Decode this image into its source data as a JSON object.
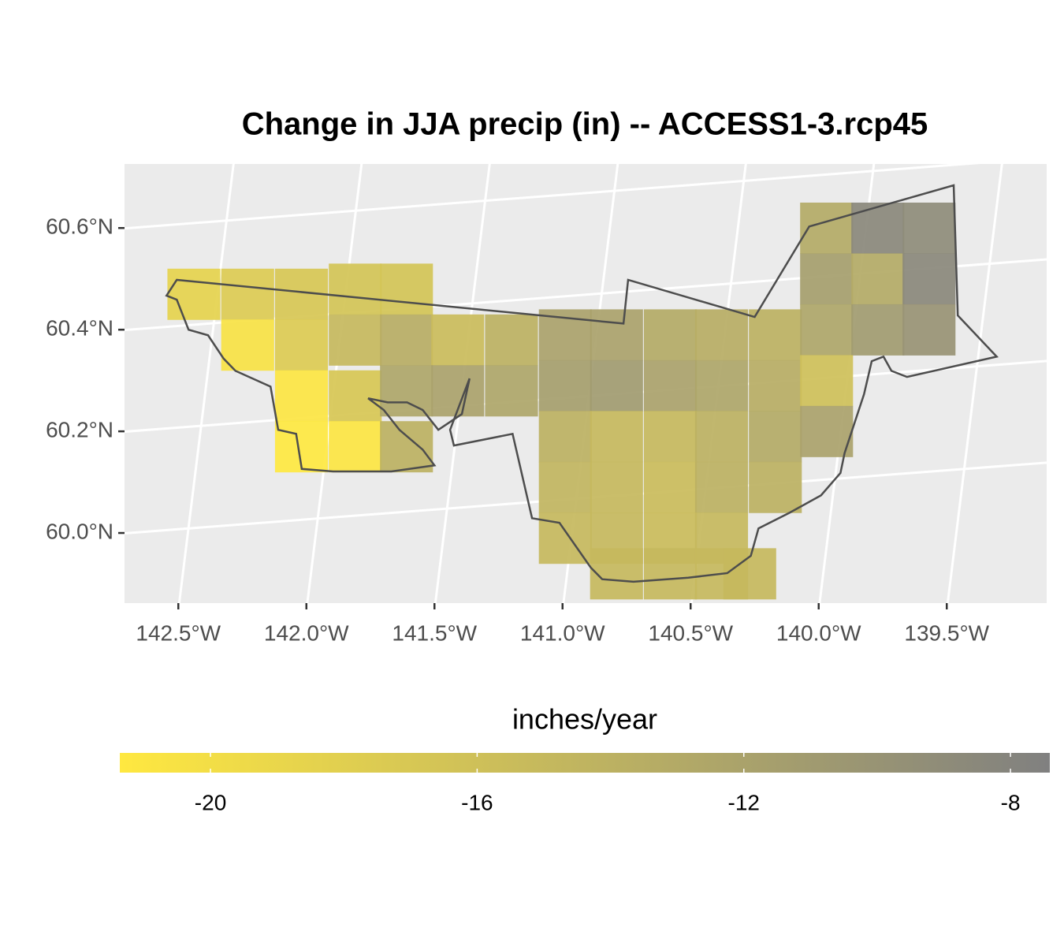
{
  "chart_data": {
    "type": "raster-map",
    "title": "Change in JJA precip (in) -- ACCESS1-3.rcp45",
    "xlim": [
      -142.71,
      -139.11
    ],
    "ylim": [
      59.862,
      60.726
    ],
    "xticks": [
      {
        "value": -142.5,
        "label": "142.5°W"
      },
      {
        "value": -142.0,
        "label": "142.0°W"
      },
      {
        "value": -141.5,
        "label": "141.5°W"
      },
      {
        "value": -141.0,
        "label": "141.0°W"
      },
      {
        "value": -140.5,
        "label": "140.5°W"
      },
      {
        "value": -140.0,
        "label": "140.0°W"
      },
      {
        "value": -139.5,
        "label": "139.5°W"
      }
    ],
    "yticks": [
      {
        "value": 60.0,
        "label": "60.0°N"
      },
      {
        "value": 60.2,
        "label": "60.2°N"
      },
      {
        "value": 60.4,
        "label": "60.4°N"
      },
      {
        "value": 60.6,
        "label": "60.6°N"
      }
    ],
    "grid": true,
    "cell_size": [
      0.205,
      0.1
    ],
    "cells": [
      {
        "lon": -139.97,
        "lat": 60.6,
        "value": -13
      },
      {
        "lon": -139.77,
        "lat": 60.6,
        "value": -8.5
      },
      {
        "lon": -139.57,
        "lat": 60.6,
        "value": -9
      },
      {
        "lon": -142.44,
        "lat": 60.47,
        "value": -18.5
      },
      {
        "lon": -142.23,
        "lat": 60.47,
        "value": -17.5
      },
      {
        "lon": -142.02,
        "lat": 60.47,
        "value": -17
      },
      {
        "lon": -141.81,
        "lat": 60.48,
        "value": -16.5
      },
      {
        "lon": -141.61,
        "lat": 60.48,
        "value": -16.5
      },
      {
        "lon": -139.97,
        "lat": 60.5,
        "value": -11.5
      },
      {
        "lon": -139.77,
        "lat": 60.5,
        "value": -13
      },
      {
        "lon": -139.57,
        "lat": 60.5,
        "value": -8.5
      },
      {
        "lon": -142.23,
        "lat": 60.37,
        "value": -20.5
      },
      {
        "lon": -142.02,
        "lat": 60.37,
        "value": -17.5
      },
      {
        "lon": -141.81,
        "lat": 60.38,
        "value": -15
      },
      {
        "lon": -141.61,
        "lat": 60.38,
        "value": -13.5
      },
      {
        "lon": -141.41,
        "lat": 60.38,
        "value": -15.5
      },
      {
        "lon": -141.2,
        "lat": 60.38,
        "value": -14
      },
      {
        "lon": -140.99,
        "lat": 60.39,
        "value": -12
      },
      {
        "lon": -140.79,
        "lat": 60.39,
        "value": -12
      },
      {
        "lon": -140.58,
        "lat": 60.39,
        "value": -13
      },
      {
        "lon": -140.38,
        "lat": 60.39,
        "value": -13.5
      },
      {
        "lon": -140.17,
        "lat": 60.39,
        "value": -14
      },
      {
        "lon": -139.97,
        "lat": 60.4,
        "value": -12.5
      },
      {
        "lon": -139.77,
        "lat": 60.4,
        "value": -11
      },
      {
        "lon": -139.57,
        "lat": 60.4,
        "value": -10
      },
      {
        "lon": -142.02,
        "lat": 60.27,
        "value": -21
      },
      {
        "lon": -141.81,
        "lat": 60.27,
        "value": -17
      },
      {
        "lon": -141.61,
        "lat": 60.28,
        "value": -12.5
      },
      {
        "lon": -141.41,
        "lat": 60.28,
        "value": -12
      },
      {
        "lon": -141.2,
        "lat": 60.28,
        "value": -12.5
      },
      {
        "lon": -140.99,
        "lat": 60.29,
        "value": -11.5
      },
      {
        "lon": -140.79,
        "lat": 60.29,
        "value": -11
      },
      {
        "lon": -140.58,
        "lat": 60.29,
        "value": -12
      },
      {
        "lon": -140.38,
        "lat": 60.29,
        "value": -12.5
      },
      {
        "lon": -140.17,
        "lat": 60.29,
        "value": -13.5
      },
      {
        "lon": -139.97,
        "lat": 60.3,
        "value": -16
      },
      {
        "lon": -142.02,
        "lat": 60.17,
        "value": -21.3
      },
      {
        "lon": -141.81,
        "lat": 60.17,
        "value": -21
      },
      {
        "lon": -141.61,
        "lat": 60.17,
        "value": -14
      },
      {
        "lon": -140.99,
        "lat": 60.19,
        "value": -14
      },
      {
        "lon": -140.79,
        "lat": 60.19,
        "value": -15
      },
      {
        "lon": -140.58,
        "lat": 60.19,
        "value": -15
      },
      {
        "lon": -140.38,
        "lat": 60.19,
        "value": -14
      },
      {
        "lon": -140.17,
        "lat": 60.19,
        "value": -13
      },
      {
        "lon": -139.97,
        "lat": 60.2,
        "value": -12
      },
      {
        "lon": -140.99,
        "lat": 60.09,
        "value": -14.5
      },
      {
        "lon": -140.79,
        "lat": 60.09,
        "value": -15
      },
      {
        "lon": -140.58,
        "lat": 60.09,
        "value": -15.5
      },
      {
        "lon": -140.38,
        "lat": 60.09,
        "value": -14
      },
      {
        "lon": -140.17,
        "lat": 60.09,
        "value": -14
      },
      {
        "lon": -140.99,
        "lat": 59.99,
        "value": -15
      },
      {
        "lon": -140.79,
        "lat": 59.99,
        "value": -15
      },
      {
        "lon": -140.58,
        "lat": 59.99,
        "value": -15.5
      },
      {
        "lon": -140.38,
        "lat": 59.99,
        "value": -15
      },
      {
        "lon": -140.79,
        "lat": 59.92,
        "value": -15
      },
      {
        "lon": -140.58,
        "lat": 59.92,
        "value": -15
      },
      {
        "lon": -140.38,
        "lat": 59.92,
        "value": -15
      },
      {
        "lon": -140.27,
        "lat": 59.92,
        "value": -15
      }
    ],
    "boundary": [
      [
        -142.546,
        60.467
      ],
      [
        -142.506,
        60.498
      ],
      [
        -140.762,
        60.412
      ],
      [
        -140.744,
        60.498
      ],
      [
        -140.25,
        60.425
      ],
      [
        -140.037,
        60.603
      ],
      [
        -139.473,
        60.684
      ],
      [
        -139.457,
        60.428
      ],
      [
        -139.305,
        60.347
      ],
      [
        -139.655,
        60.307
      ],
      [
        -139.716,
        60.319
      ],
      [
        -139.747,
        60.347
      ],
      [
        -139.793,
        60.338
      ],
      [
        -139.823,
        60.273
      ],
      [
        -139.899,
        60.157
      ],
      [
        -139.915,
        60.118
      ],
      [
        -139.991,
        60.074
      ],
      [
        -140.113,
        60.04
      ],
      [
        -140.235,
        60.009
      ],
      [
        -140.265,
        59.955
      ],
      [
        -140.357,
        59.921
      ],
      [
        -140.509,
        59.912
      ],
      [
        -140.723,
        59.904
      ],
      [
        -140.845,
        59.909
      ],
      [
        -140.89,
        59.932
      ],
      [
        -141.012,
        60.02
      ],
      [
        -141.119,
        60.029
      ],
      [
        -141.195,
        60.195
      ],
      [
        -141.424,
        60.172
      ],
      [
        -141.439,
        60.203
      ],
      [
        -141.363,
        60.304
      ],
      [
        -141.393,
        60.234
      ],
      [
        -141.485,
        60.203
      ],
      [
        -141.546,
        60.242
      ],
      [
        -141.607,
        60.257
      ],
      [
        -141.683,
        60.257
      ],
      [
        -141.759,
        60.265
      ],
      [
        -141.698,
        60.242
      ],
      [
        -141.637,
        60.203
      ],
      [
        -141.546,
        60.164
      ],
      [
        -141.5,
        60.133
      ],
      [
        -141.668,
        60.121
      ],
      [
        -141.896,
        60.121
      ],
      [
        -142.018,
        60.126
      ],
      [
        -142.04,
        60.195
      ],
      [
        -142.11,
        60.203
      ],
      [
        -142.14,
        60.288
      ],
      [
        -142.277,
        60.319
      ],
      [
        -142.323,
        60.343
      ],
      [
        -142.384,
        60.389
      ],
      [
        -142.46,
        60.4
      ],
      [
        -142.506,
        60.459
      ]
    ],
    "legend": {
      "title": "inches/year",
      "lim": [
        -21.36,
        -7.41
      ],
      "ticks": [
        -20,
        -16,
        -12,
        -8
      ],
      "low_color": "#FFE840",
      "high_color": "#808080"
    }
  }
}
